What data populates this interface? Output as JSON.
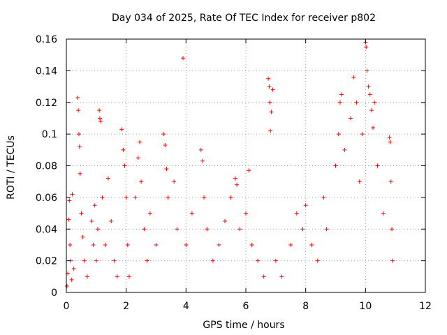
{
  "chart_data": {
    "type": "scatter",
    "title": "Day 034 of 2025, Rate Of TEC Index for receiver p802",
    "xlabel": "GPS time / hours",
    "ylabel": "ROTI / TECUs",
    "xlim": [
      0,
      12
    ],
    "ylim": [
      0,
      0.16
    ],
    "xticks": [
      0,
      2,
      4,
      6,
      8,
      10,
      12
    ],
    "xtick_labels": [
      "0",
      "2",
      "4",
      "6",
      "8",
      "10",
      "12"
    ],
    "yticks": [
      0,
      0.02,
      0.04,
      0.06,
      0.08,
      0.1,
      0.12,
      0.14,
      0.16
    ],
    "ytick_labels": [
      "0",
      "0.02",
      "0.04",
      "0.06",
      "0.08",
      "0.1",
      "0.12",
      "0.14",
      "0.16"
    ],
    "grid": true,
    "marker": "+",
    "marker_color": "#ff0000",
    "series": [
      {
        "name": "ROTI",
        "points": [
          [
            0.02,
            0.004
          ],
          [
            0.05,
            0.012
          ],
          [
            0.08,
            0.046
          ],
          [
            0.1,
            0.058
          ],
          [
            0.12,
            0.03
          ],
          [
            0.15,
            0.02
          ],
          [
            0.18,
            0.008
          ],
          [
            0.2,
            0.062
          ],
          [
            0.25,
            0.015
          ],
          [
            0.38,
            0.123
          ],
          [
            0.4,
            0.115
          ],
          [
            0.42,
            0.1
          ],
          [
            0.44,
            0.092
          ],
          [
            0.46,
            0.075
          ],
          [
            0.5,
            0.05
          ],
          [
            0.55,
            0.035
          ],
          [
            0.6,
            0.02
          ],
          [
            0.7,
            0.01
          ],
          [
            0.85,
            0.045
          ],
          [
            0.9,
            0.03
          ],
          [
            0.95,
            0.055
          ],
          [
            1.0,
            0.02
          ],
          [
            1.05,
            0.04
          ],
          [
            1.1,
            0.115
          ],
          [
            1.12,
            0.11
          ],
          [
            1.15,
            0.108
          ],
          [
            1.2,
            0.06
          ],
          [
            1.3,
            0.03
          ],
          [
            1.4,
            0.072
          ],
          [
            1.5,
            0.045
          ],
          [
            1.6,
            0.02
          ],
          [
            1.7,
            0.01
          ],
          [
            1.85,
            0.103
          ],
          [
            1.9,
            0.09
          ],
          [
            1.95,
            0.08
          ],
          [
            2.0,
            0.06
          ],
          [
            2.05,
            0.03
          ],
          [
            2.1,
            0.01
          ],
          [
            2.3,
            0.06
          ],
          [
            2.4,
            0.085
          ],
          [
            2.45,
            0.095
          ],
          [
            2.5,
            0.07
          ],
          [
            2.6,
            0.04
          ],
          [
            2.7,
            0.02
          ],
          [
            2.8,
            0.05
          ],
          [
            3.0,
            0.03
          ],
          [
            3.25,
            0.1
          ],
          [
            3.3,
            0.093
          ],
          [
            3.35,
            0.078
          ],
          [
            3.4,
            0.06
          ],
          [
            3.6,
            0.07
          ],
          [
            3.7,
            0.04
          ],
          [
            3.9,
            0.148
          ],
          [
            4.0,
            0.03
          ],
          [
            4.2,
            0.05
          ],
          [
            4.5,
            0.09
          ],
          [
            4.55,
            0.083
          ],
          [
            4.6,
            0.06
          ],
          [
            4.7,
            0.04
          ],
          [
            4.9,
            0.02
          ],
          [
            5.1,
            0.03
          ],
          [
            5.3,
            0.045
          ],
          [
            5.5,
            0.06
          ],
          [
            5.65,
            0.072
          ],
          [
            5.7,
            0.068
          ],
          [
            5.8,
            0.04
          ],
          [
            6.0,
            0.05
          ],
          [
            6.1,
            0.077
          ],
          [
            6.2,
            0.03
          ],
          [
            6.4,
            0.02
          ],
          [
            6.6,
            0.01
          ],
          [
            6.75,
            0.135
          ],
          [
            6.78,
            0.13
          ],
          [
            6.8,
            0.12
          ],
          [
            6.82,
            0.102
          ],
          [
            6.85,
            0.114
          ],
          [
            6.9,
            0.128
          ],
          [
            7.0,
            0.02
          ],
          [
            7.2,
            0.01
          ],
          [
            7.5,
            0.03
          ],
          [
            7.7,
            0.05
          ],
          [
            7.9,
            0.04
          ],
          [
            8.0,
            0.055
          ],
          [
            8.2,
            0.03
          ],
          [
            8.4,
            0.02
          ],
          [
            8.6,
            0.06
          ],
          [
            8.7,
            0.04
          ],
          [
            9.0,
            0.08
          ],
          [
            9.1,
            0.1
          ],
          [
            9.15,
            0.12
          ],
          [
            9.2,
            0.125
          ],
          [
            9.3,
            0.09
          ],
          [
            9.5,
            0.11
          ],
          [
            9.6,
            0.136
          ],
          [
            9.7,
            0.12
          ],
          [
            9.8,
            0.07
          ],
          [
            9.9,
            0.1
          ],
          [
            10.0,
            0.158
          ],
          [
            10.02,
            0.155
          ],
          [
            10.05,
            0.14
          ],
          [
            10.1,
            0.13
          ],
          [
            10.15,
            0.125
          ],
          [
            10.2,
            0.115
          ],
          [
            10.25,
            0.104
          ],
          [
            10.3,
            0.12
          ],
          [
            10.4,
            0.08
          ],
          [
            10.6,
            0.05
          ],
          [
            10.8,
            0.098
          ],
          [
            10.82,
            0.095
          ],
          [
            10.85,
            0.07
          ],
          [
            10.88,
            0.04
          ],
          [
            10.9,
            0.02
          ]
        ]
      }
    ]
  }
}
